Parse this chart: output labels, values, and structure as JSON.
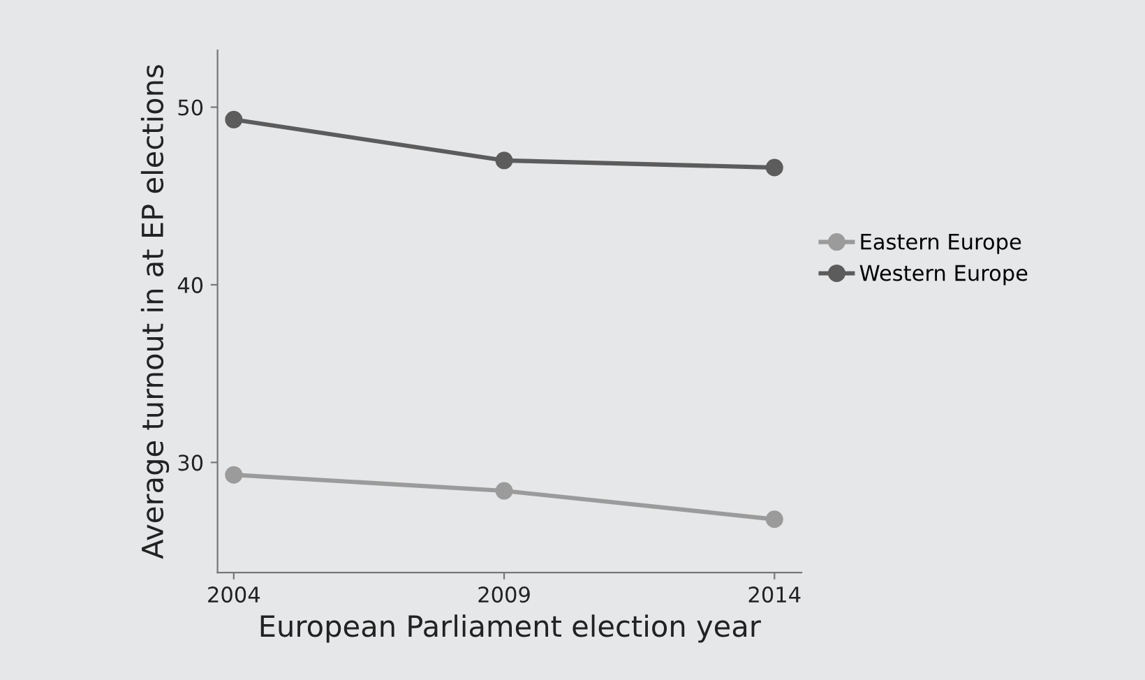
{
  "chart_data": {
    "type": "line",
    "xlabel": "European Parliament election year",
    "ylabel": "Average turnout in at EP elections",
    "x": [
      2004,
      2009,
      2014
    ],
    "series": [
      {
        "name": "Eastern Europe",
        "color": "#9b9b9b",
        "values": [
          29.3,
          28.4,
          26.8
        ]
      },
      {
        "name": "Western Europe",
        "color": "#5c5c5c",
        "values": [
          49.3,
          47.0,
          46.6
        ]
      }
    ],
    "xlim": [
      2003.7,
      2014.5
    ],
    "xticks": [
      2004,
      2009,
      2014
    ],
    "ylim": [
      23.8,
      53.2
    ],
    "yticks": [
      30,
      40,
      50
    ],
    "grid": false,
    "legend": "right",
    "marker": "circle",
    "line_style": "solid"
  }
}
